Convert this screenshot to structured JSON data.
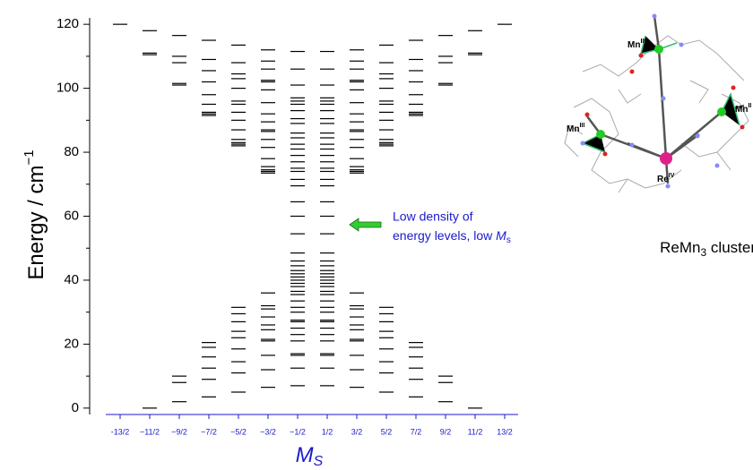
{
  "chart_data": {
    "type": "levels",
    "y_title": "Energy / cm",
    "y_title_sup": "−1",
    "x_title": "M",
    "x_title_sub": "S",
    "categories": [
      "-13/2",
      "−11/2",
      "−9/2",
      "−7/2",
      "−5/2",
      "−3/2",
      "−1/2",
      "1/2",
      "3/2",
      "5/2",
      "7/2",
      "9/2",
      "11/2",
      "13/2"
    ],
    "levels": [
      [
        120
      ],
      [
        0,
        110.5,
        111,
        118
      ],
      [
        2,
        8,
        10,
        101,
        101.5,
        108,
        110,
        116.5
      ],
      [
        3.5,
        9,
        12.5,
        16,
        19,
        20.5,
        91.5,
        92,
        92.5,
        95,
        98,
        102,
        105.5,
        109,
        115
      ],
      [
        5,
        11,
        14.5,
        18.5,
        22,
        24,
        27,
        29.5,
        31.5,
        82,
        82.5,
        83,
        84,
        87,
        90,
        92.5,
        95,
        96,
        100,
        103,
        104.5,
        108,
        113.5
      ],
      [
        6.5,
        12,
        16.5,
        21,
        21.5,
        24.5,
        26,
        28.5,
        31,
        32,
        36,
        73.5,
        74,
        74.5,
        75.5,
        78,
        81.5,
        84,
        86.5,
        87,
        89.5,
        92,
        95.5,
        99.5,
        102,
        102.5,
        106,
        108.5,
        112
      ],
      [
        7,
        12.5,
        16.5,
        17,
        21,
        23,
        25,
        27,
        27.5,
        30,
        31.5,
        33.5,
        35.5,
        36.5,
        38,
        39,
        40,
        41,
        42,
        43,
        44.5,
        46,
        48.5,
        54.5,
        60,
        64.5,
        69.5,
        71.5,
        74,
        75,
        77,
        79,
        81,
        82.5,
        84.5,
        86,
        89,
        90.5,
        93,
        95,
        96,
        97,
        101,
        106,
        111.5
      ],
      [
        7,
        12.5,
        16.5,
        17,
        21,
        23,
        25,
        27,
        27.5,
        30,
        31.5,
        33.5,
        35.5,
        36.5,
        38,
        39,
        40,
        41,
        42,
        43,
        44.5,
        46,
        48.5,
        54.5,
        60,
        64.5,
        69.5,
        71.5,
        74,
        75,
        77,
        79,
        81,
        82.5,
        84.5,
        86,
        89,
        90.5,
        93,
        95,
        96,
        97,
        101,
        106,
        111.5
      ],
      [
        6.5,
        12,
        16.5,
        21,
        21.5,
        24.5,
        26,
        28.5,
        31,
        32,
        36,
        73.5,
        74,
        74.5,
        75.5,
        78,
        81.5,
        84,
        86.5,
        87,
        89.5,
        92,
        95.5,
        99.5,
        102,
        102.5,
        106,
        108.5,
        112
      ],
      [
        5,
        11,
        14.5,
        18.5,
        22,
        24,
        27,
        29.5,
        31.5,
        82,
        82.5,
        83,
        84,
        87,
        90,
        92.5,
        95,
        96,
        100,
        103,
        104.5,
        108,
        113.5
      ],
      [
        3.5,
        9,
        12.5,
        16,
        19,
        20.5,
        91.5,
        92,
        92.5,
        95,
        98,
        102,
        105.5,
        109,
        115
      ],
      [
        2,
        8,
        10,
        101,
        101.5,
        108,
        110,
        116.5
      ],
      [
        0,
        110.5,
        111,
        118
      ],
      [
        120
      ]
    ],
    "color": "#000000",
    "ylim": [
      -2,
      122
    ],
    "yticks": [
      0,
      20,
      40,
      60,
      80,
      100,
      120
    ],
    "yminorticks": [
      10,
      30,
      50,
      70,
      90,
      110
    ],
    "annotation": {
      "lines": [
        "Low density of",
        "energy levels, low "
      ],
      "symbol": "M",
      "symbol_sub": "s",
      "arrow_color": "#33cc33"
    },
    "figure": {
      "caption": "ReMn",
      "caption_sub": "3",
      "caption_end": " cluster",
      "atom_labels": [
        {
          "element": "Mn",
          "oxidation": "III"
        },
        {
          "element": "Mn",
          "oxidation": "III"
        },
        {
          "element": "Mn",
          "oxidation": "II"
        },
        {
          "element": "Re",
          "oxidation": "IV"
        }
      ]
    }
  }
}
